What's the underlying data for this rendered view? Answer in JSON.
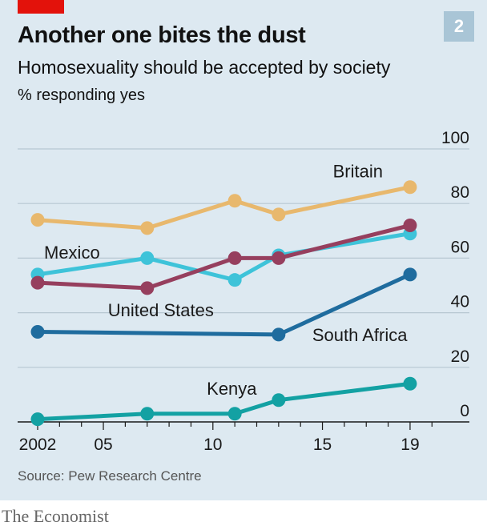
{
  "figure_number": "2",
  "title": "Another one bites the dust",
  "subtitle": "Homosexuality should be accepted by society",
  "unit_note": "% responding yes",
  "source": "Source: Pew Research Centre",
  "brand": "The Economist",
  "colors": {
    "background": "#dde9f1",
    "accent_red": "#e3120b",
    "gridline": "#b7c7d2",
    "axis": "#1a1a1a"
  },
  "chart_data": {
    "type": "line",
    "title": "Another one bites the dust",
    "subtitle": "Homosexuality should be accepted by society",
    "ylabel": "% responding yes",
    "xlabel": "",
    "x_tick_labels": [
      "2002",
      "05",
      "10",
      "15",
      "19"
    ],
    "x_ticks": [
      2002,
      2005,
      2010,
      2015,
      2019
    ],
    "xlim": [
      2001.2,
      2020.5
    ],
    "ylim": [
      0,
      100
    ],
    "y_ticks": [
      0,
      20,
      40,
      60,
      80,
      100
    ],
    "y_tick_labels": [
      "0",
      "20",
      "40",
      "60",
      "80",
      "100"
    ],
    "y_axis_side": "right",
    "grid": true,
    "legend": "direct labels",
    "series": [
      {
        "name": "Britain",
        "color": "#e8b86d",
        "x": [
          2002,
          2007,
          2011,
          2013,
          2019
        ],
        "values": [
          74,
          71,
          81,
          76,
          86
        ]
      },
      {
        "name": "Mexico",
        "color": "#3ec3d9",
        "x": [
          2002,
          2007,
          2011,
          2013,
          2019
        ],
        "values": [
          54,
          60,
          52,
          61,
          69
        ]
      },
      {
        "name": "United States",
        "color": "#963f5e",
        "x": [
          2002,
          2007,
          2011,
          2013,
          2019
        ],
        "values": [
          51,
          49,
          60,
          60,
          72
        ]
      },
      {
        "name": "South Africa",
        "color": "#1f6c9e",
        "x": [
          2002,
          2013,
          2019
        ],
        "values": [
          33,
          32,
          54
        ]
      },
      {
        "name": "Kenya",
        "color": "#13a1a3",
        "x": [
          2002,
          2007,
          2011,
          2013,
          2019
        ],
        "values": [
          1,
          3,
          3,
          8,
          14
        ]
      }
    ]
  }
}
